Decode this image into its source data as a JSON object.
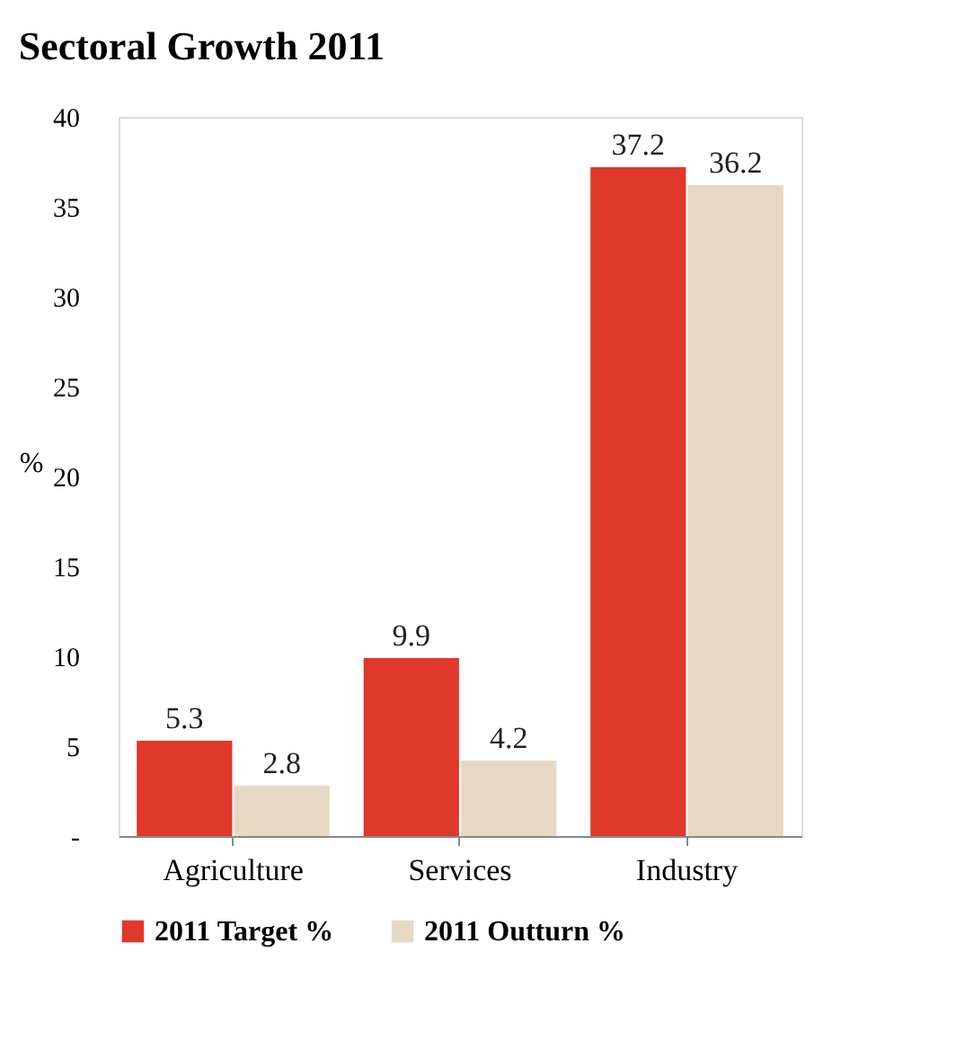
{
  "chart_data": {
    "type": "bar",
    "title": "Sectoral Growth 2011",
    "ylabel": "%",
    "categories": [
      "Agriculture",
      "Services",
      "Industry"
    ],
    "series": [
      {
        "name": "2011 Target %",
        "color": "#e0382a",
        "values": [
          5.3,
          9.9,
          37.2
        ]
      },
      {
        "name": "2011 Outturn %",
        "color": "#e6d8c3",
        "values": [
          2.8,
          4.2,
          36.2
        ]
      }
    ],
    "ylim": [
      0,
      40
    ],
    "yticks": [
      {
        "value": 0,
        "label": "-"
      },
      5,
      10,
      15,
      20,
      25,
      30,
      35,
      40
    ],
    "data_labels": true,
    "grid": false,
    "legend": "bottom"
  }
}
